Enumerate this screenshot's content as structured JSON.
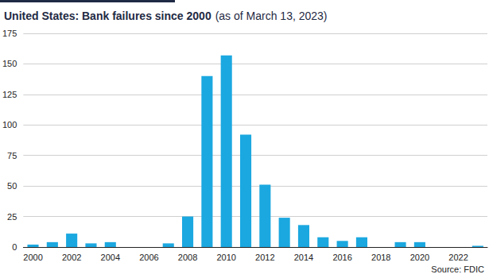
{
  "chart_data": {
    "type": "bar",
    "title": "United States: Bank failures since 2000",
    "subtitle": "(as of March 13, 2023)",
    "source": "Source: FDIC",
    "categories": [
      "2000",
      null,
      "2002",
      null,
      "2004",
      null,
      "2006",
      null,
      "2008",
      null,
      "2010",
      null,
      "2012",
      null,
      "2014",
      null,
      "2016",
      null,
      "2018",
      null,
      "2020",
      null,
      "2022",
      null
    ],
    "values": [
      2,
      4,
      11,
      3,
      4,
      0,
      0,
      3,
      25,
      140,
      157,
      92,
      51,
      24,
      18,
      8,
      5,
      8,
      0,
      4,
      4,
      0,
      0,
      1
    ],
    "color": "#1ba8e0",
    "ylim": [
      0,
      175
    ],
    "yticks": [
      0,
      25,
      50,
      75,
      100,
      125,
      150,
      175
    ],
    "grid": true
  }
}
